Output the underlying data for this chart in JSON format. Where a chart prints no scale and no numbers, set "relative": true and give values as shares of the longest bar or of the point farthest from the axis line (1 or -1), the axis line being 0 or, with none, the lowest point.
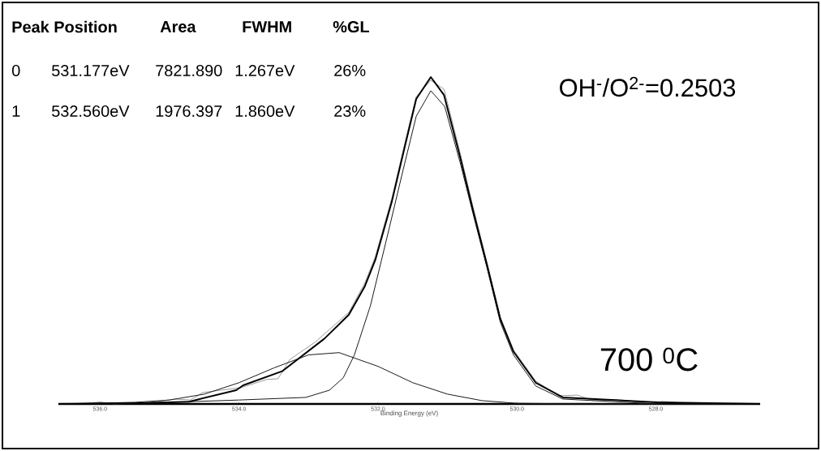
{
  "chart_data": {
    "type": "line",
    "relative": true,
    "xlabel": "Binding Energy (eV)",
    "xlim": [
      536.6,
      526.5
    ],
    "xticks": [
      {
        "value": 536,
        "label": "536.0"
      },
      {
        "value": 534,
        "label": "534.0"
      },
      {
        "value": 532,
        "label": "532.0"
      },
      {
        "value": 530,
        "label": "530.0"
      },
      {
        "value": 528,
        "label": "528.0"
      }
    ],
    "annotations": [
      "Peak Position",
      "Area",
      "FWHM",
      "%GL",
      "0",
      "531.177eV",
      "7821.890",
      "1.267eV",
      "26%",
      "1",
      "532.560eV",
      "1976.397",
      "1.860eV",
      "23%",
      "OH$^{-}$/O$^{2-}$=0.2503",
      "700 $^{0}$C"
    ],
    "series": [
      {
        "color": "#808080",
        "x": [
          536.6,
          536.2,
          536.0,
          535.8,
          535.3,
          534.92,
          534.7,
          534.52,
          533.97,
          533.6,
          533.44,
          533.27,
          532.9,
          532.42,
          532.19,
          532.04,
          531.8,
          531.6,
          531.45,
          531.24,
          531.05,
          530.82,
          530.63,
          530.43,
          530.24,
          530.05,
          529.73,
          529.4,
          529.13,
          528.9,
          528.5,
          528.2,
          527.9,
          527.6,
          526.5
        ],
        "values": [
          0,
          0.002,
          0.006,
          0,
          0.004,
          0.015,
          0.012,
          0.035,
          0.05,
          0.075,
          0.077,
          0.136,
          0.19,
          0.28,
          0.37,
          0.45,
          0.63,
          0.81,
          0.94,
          0.99,
          0.963,
          0.77,
          0.6,
          0.43,
          0.265,
          0.165,
          0.07,
          0.025,
          0.027,
          0.01,
          0.012,
          0.004,
          0.008,
          0.002,
          0
        ]
      },
      {
        "color": "#1a1a1a",
        "x": [
          536.6,
          535.0,
          534.0,
          533.04,
          532.7,
          532.5,
          532.34,
          532.11,
          531.87,
          531.64,
          531.45,
          531.24,
          531.04,
          530.82,
          530.63,
          530.43,
          530.24,
          530.05,
          529.73,
          529.34,
          527.98,
          526.5
        ],
        "values": [
          0,
          0.005,
          0.012,
          0.02,
          0.042,
          0.08,
          0.15,
          0.3,
          0.51,
          0.715,
          0.88,
          0.958,
          0.91,
          0.74,
          0.58,
          0.415,
          0.25,
          0.15,
          0.055,
          0.015,
          0,
          0
        ]
      },
      {
        "color": "#1a1a1a",
        "x": [
          536.6,
          535.5,
          535.0,
          534.5,
          534.0,
          533.5,
          533.0,
          532.56,
          532.0,
          531.5,
          531.0,
          530.5,
          530.0,
          529.0,
          526.5
        ],
        "values": [
          0,
          0.005,
          0.012,
          0.03,
          0.065,
          0.11,
          0.15,
          0.157,
          0.115,
          0.065,
          0.03,
          0.01,
          0.002,
          0,
          0
        ]
      },
      {
        "color": "#000000",
        "x": [
          536.6,
          535.5,
          534.72,
          534.04,
          533.94,
          533.38,
          532.77,
          532.42,
          532.19,
          532.04,
          531.8,
          531.6,
          531.45,
          531.24,
          531.05,
          530.82,
          530.63,
          530.43,
          530.24,
          530.05,
          529.73,
          529.34,
          527.98,
          526.5
        ],
        "values": [
          0,
          0.002,
          0.007,
          0.042,
          0.057,
          0.1,
          0.2,
          0.273,
          0.36,
          0.44,
          0.62,
          0.8,
          0.933,
          1,
          0.945,
          0.757,
          0.59,
          0.424,
          0.26,
          0.16,
          0.065,
          0.02,
          0.005,
          0
        ]
      }
    ]
  }
}
